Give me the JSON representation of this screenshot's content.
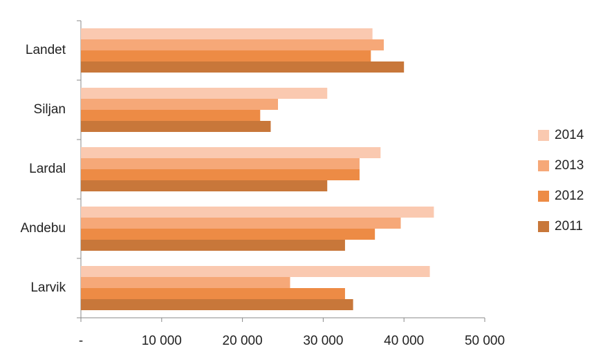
{
  "chart_data": {
    "type": "hbar",
    "categories": [
      "Landet",
      "Siljan",
      "Lardal",
      "Andebu",
      "Larvik"
    ],
    "series": [
      {
        "name": "2014",
        "color": "#fac9b0",
        "values": [
          36100,
          30500,
          37100,
          43700,
          43200
        ]
      },
      {
        "name": "2013",
        "color": "#f6a878",
        "values": [
          37500,
          24400,
          34500,
          39600,
          25900
        ]
      },
      {
        "name": "2012",
        "color": "#ed8b45",
        "values": [
          35900,
          22200,
          34500,
          36400,
          32700
        ]
      },
      {
        "name": "2011",
        "color": "#c8773a",
        "values": [
          40000,
          23500,
          30500,
          32700,
          33700
        ]
      }
    ],
    "xlim": [
      0,
      50000
    ],
    "xticks": [
      {
        "value": 0,
        "label": "-"
      },
      {
        "value": 10000,
        "label": "10 000"
      },
      {
        "value": 20000,
        "label": "20 000"
      },
      {
        "value": 30000,
        "label": "30 000"
      },
      {
        "value": 40000,
        "label": "40 000"
      },
      {
        "value": 50000,
        "label": "50 000"
      }
    ],
    "legend": "right"
  }
}
